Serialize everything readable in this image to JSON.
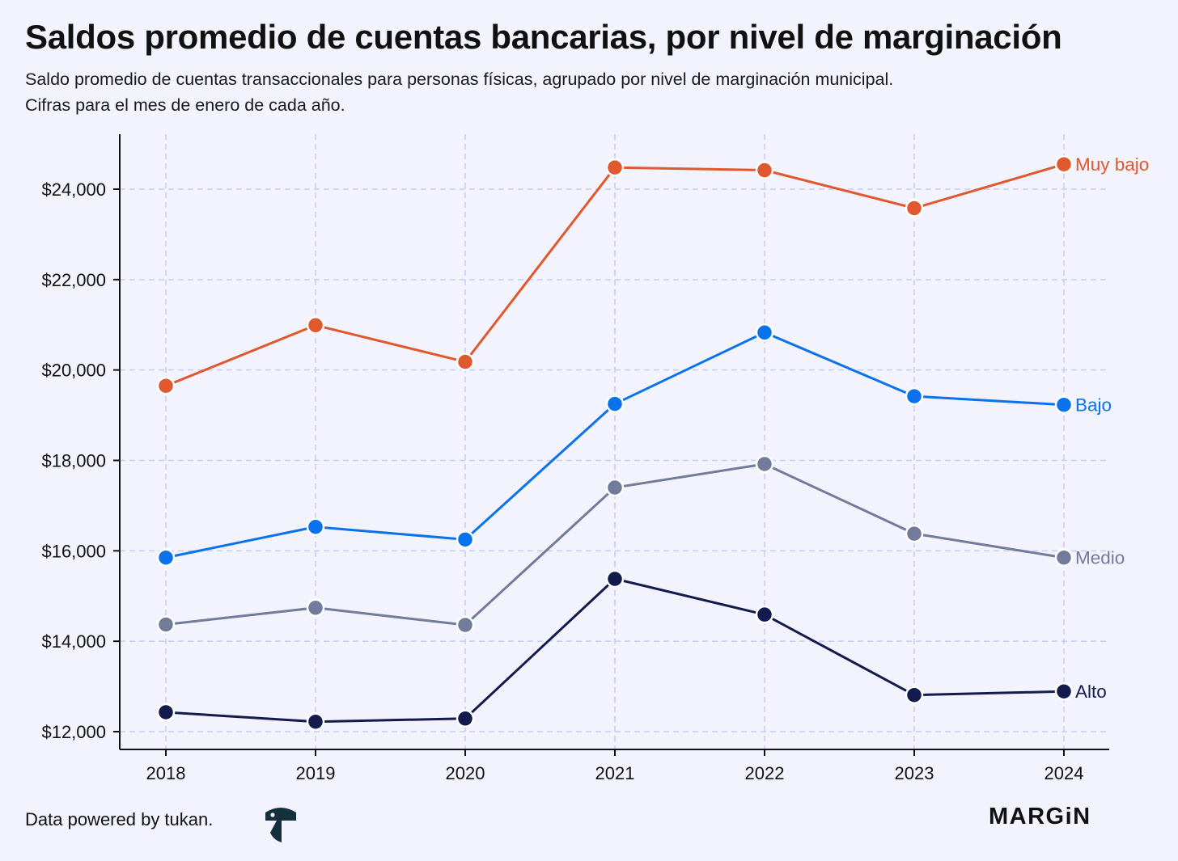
{
  "chart_data": {
    "type": "line",
    "title": "Saldos promedio de cuentas bancarias, por nivel de marginación",
    "subtitle": [
      "Saldo promedio de cuentas transaccionales para personas físicas, agrupado por nivel de marginación municipal.",
      "Cifras para el mes de enero de cada año."
    ],
    "x": [
      "2018",
      "2019",
      "2020",
      "2021",
      "2022",
      "2023",
      "2024"
    ],
    "yticks": [
      {
        "value": 12000,
        "label": "$12,000"
      },
      {
        "value": 14000,
        "label": "$14,000"
      },
      {
        "value": 16000,
        "label": "$16,000"
      },
      {
        "value": 18000,
        "label": "$18,000"
      },
      {
        "value": 20000,
        "label": "$20,000"
      },
      {
        "value": 22000,
        "label": "$22,000"
      },
      {
        "value": 24000,
        "label": "$24,000"
      }
    ],
    "ylim": [
      11600,
      25200
    ],
    "grid": true,
    "xlabel": "",
    "ylabel": "",
    "series": [
      {
        "name": "Muy bajo",
        "color": "#e0582d",
        "values": [
          19650,
          20990,
          20180,
          24480,
          24420,
          23580,
          24550
        ]
      },
      {
        "name": "Bajo",
        "color": "#0a72ea",
        "values": [
          15850,
          16530,
          16250,
          19250,
          20830,
          19420,
          19230
        ]
      },
      {
        "name": "Medio",
        "color": "#737b9a",
        "values": [
          14370,
          14740,
          14360,
          17400,
          17920,
          16380,
          15850
        ]
      },
      {
        "name": "Alto",
        "color": "#121b4c",
        "values": [
          12430,
          12220,
          12290,
          15380,
          14590,
          12810,
          12890
        ]
      }
    ]
  },
  "footer": {
    "credit": "Data powered by tukan.",
    "brand": "MARGiN"
  },
  "icons": {
    "tukan": "tukan-logo-icon"
  },
  "colors": {
    "background": "#f2f3fd",
    "grid": "#c7cdf2"
  }
}
